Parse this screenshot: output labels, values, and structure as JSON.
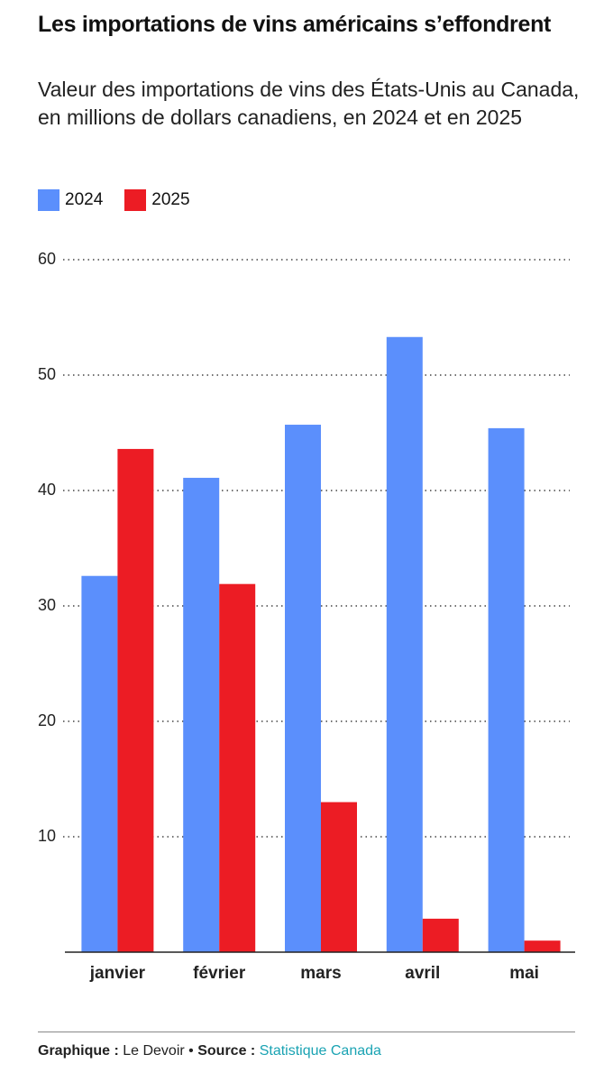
{
  "chart_data": {
    "type": "bar",
    "title": "Les importations de vins américains s’effondrent",
    "subtitle": "Valeur des importations de vins des États-Unis au Canada, en millions de dollars canadiens, en 2024 et en 2025",
    "categories": [
      "janvier",
      "février",
      "mars",
      "avril",
      "mai"
    ],
    "series": [
      {
        "name": "2024",
        "color": "#5b8ffc",
        "values": [
          32.6,
          41.1,
          45.7,
          53.3,
          45.4
        ]
      },
      {
        "name": "2025",
        "color": "#ec1c24",
        "values": [
          43.6,
          31.9,
          13.0,
          2.9,
          1.0
        ]
      }
    ],
    "ylim": [
      0,
      60
    ],
    "yticks": [
      10,
      20,
      30,
      40,
      50,
      60
    ],
    "grid": true,
    "credit": {
      "graphic_label": "Graphique :",
      "graphic_value": "Le Devoir",
      "separator": "•",
      "source_label": "Source :",
      "source_value": "Statistique Canada"
    }
  }
}
